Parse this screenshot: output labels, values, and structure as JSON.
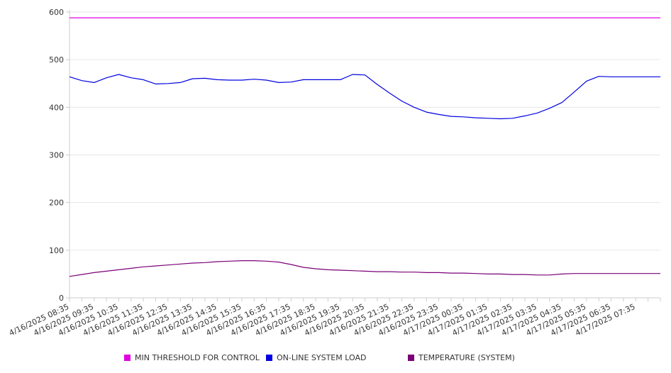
{
  "chart_data": {
    "type": "line",
    "title": "",
    "xlabel": "",
    "ylabel": "",
    "ylim": [
      0,
      600
    ],
    "y_ticks": [
      0,
      100,
      200,
      300,
      400,
      500,
      600
    ],
    "grid": "horizontal",
    "legend_position": "bottom",
    "x_tick_labels": [
      "4/16/2025 08:35",
      "4/16/2025 09:35",
      "4/16/2025 10:35",
      "4/16/2025 11:35",
      "4/16/2025 12:35",
      "4/16/2025 13:35",
      "4/16/2025 14:35",
      "4/16/2025 15:35",
      "4/16/2025 16:35",
      "4/16/2025 17:35",
      "4/16/2025 18:35",
      "4/16/2025 19:35",
      "4/16/2025 20:35",
      "4/16/2025 21:35",
      "4/16/2025 22:35",
      "4/16/2025 23:35",
      "4/17/2025 00:35",
      "4/17/2025 01:35",
      "4/17/2025 02:35",
      "4/17/2025 03:35",
      "4/17/2025 04:35",
      "4/17/2025 05:35",
      "4/17/2025 06:35",
      "4/17/2025 07:35"
    ],
    "x": [
      "4/16/2025 08:35",
      "4/16/2025 09:05",
      "4/16/2025 09:35",
      "4/16/2025 10:05",
      "4/16/2025 10:35",
      "4/16/2025 11:05",
      "4/16/2025 11:35",
      "4/16/2025 12:05",
      "4/16/2025 12:35",
      "4/16/2025 13:05",
      "4/16/2025 13:35",
      "4/16/2025 14:05",
      "4/16/2025 14:35",
      "4/16/2025 15:05",
      "4/16/2025 15:35",
      "4/16/2025 16:05",
      "4/16/2025 16:35",
      "4/16/2025 17:05",
      "4/16/2025 17:35",
      "4/16/2025 18:05",
      "4/16/2025 18:35",
      "4/16/2025 19:05",
      "4/16/2025 19:35",
      "4/16/2025 20:05",
      "4/16/2025 20:35",
      "4/16/2025 21:05",
      "4/16/2025 21:35",
      "4/16/2025 22:05",
      "4/16/2025 22:35",
      "4/16/2025 23:05",
      "4/16/2025 23:35",
      "4/17/2025 00:05",
      "4/17/2025 00:35",
      "4/17/2025 01:05",
      "4/17/2025 01:35",
      "4/17/2025 02:05",
      "4/17/2025 02:35",
      "4/17/2025 03:05",
      "4/17/2025 03:35",
      "4/17/2025 04:05",
      "4/17/2025 04:35",
      "4/17/2025 05:05",
      "4/17/2025 05:35",
      "4/17/2025 06:05",
      "4/17/2025 06:35",
      "4/17/2025 07:05",
      "4/17/2025 07:35",
      "4/17/2025 08:05",
      "4/17/2025 08:35"
    ],
    "series": [
      {
        "name": "MIN THRESHOLD FOR CONTROL",
        "color": "#e100e1",
        "values": [
          588,
          588,
          588,
          588,
          588,
          588,
          588,
          588,
          588,
          588,
          588,
          588,
          588,
          588,
          588,
          588,
          588,
          588,
          588,
          588,
          588,
          588,
          588,
          588,
          588,
          588,
          588,
          588,
          588,
          588,
          588,
          588,
          588,
          588,
          588,
          588,
          588,
          588,
          588,
          588,
          588,
          588,
          588,
          588,
          588,
          588,
          588,
          588,
          588
        ]
      },
      {
        "name": "ON-LINE SYSTEM LOAD",
        "color": "#0000e1",
        "values": [
          464,
          456,
          452,
          462,
          469,
          462,
          458,
          449,
          450,
          452,
          460,
          461,
          458,
          457,
          457,
          459,
          457,
          452,
          453,
          458,
          458,
          458,
          458,
          469,
          468,
          448,
          430,
          413,
          400,
          390,
          385,
          381,
          380,
          378,
          377,
          376,
          377,
          382,
          388,
          398,
          410,
          432,
          455,
          465,
          464,
          464,
          464,
          464,
          464
        ]
      },
      {
        "name": "TEMPERATURE (SYSTEM)",
        "color": "#7a0077",
        "values": [
          45,
          49,
          53,
          56,
          59,
          62,
          65,
          67,
          69,
          71,
          73,
          74,
          76,
          77,
          78,
          78,
          77,
          75,
          70,
          64,
          61,
          59,
          58,
          57,
          56,
          55,
          55,
          54,
          54,
          53,
          53,
          52,
          52,
          51,
          50,
          50,
          49,
          49,
          48,
          48,
          50,
          51,
          51,
          51,
          51,
          51,
          51,
          51,
          51
        ]
      }
    ]
  },
  "legend": {
    "items": [
      {
        "label": "MIN THRESHOLD FOR CONTROL",
        "color": "#e100e1"
      },
      {
        "label": "ON-LINE SYSTEM LOAD",
        "color": "#0000e1"
      },
      {
        "label": "TEMPERATURE (SYSTEM)",
        "color": "#7a0077"
      }
    ]
  }
}
